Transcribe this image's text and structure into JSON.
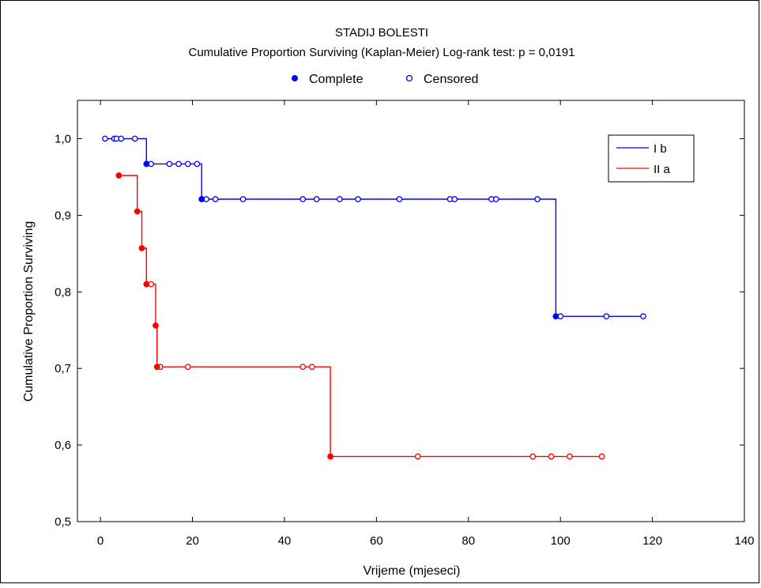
{
  "chart_data": {
    "type": "line",
    "title": "STADIJ BOLESTI",
    "subtitle": "Cumulative Proportion Surviving (Kaplan-Meier)  Log-rank test: p = 0,0191",
    "marker_legend": [
      {
        "label": "Complete",
        "filled": true
      },
      {
        "label": "Censored",
        "filled": false
      }
    ],
    "xlabel": "Vrijeme (mjeseci)",
    "ylabel": "Cumulative Proportion Surviving",
    "xlim": [
      -5,
      140
    ],
    "ylim": [
      0.5,
      1.05
    ],
    "x_ticks": [
      "0",
      "20",
      "40",
      "60",
      "80",
      "100",
      "120",
      "140"
    ],
    "x_tick_values": [
      0,
      20,
      40,
      60,
      80,
      100,
      120,
      140
    ],
    "y_ticks": [
      "0,5",
      "0,6",
      "0,7",
      "0,8",
      "0,9",
      "1,0"
    ],
    "y_tick_values": [
      0.5,
      0.6,
      0.7,
      0.8,
      0.9,
      1.0
    ],
    "grid": false,
    "legend_position": "top-right",
    "series": [
      {
        "name": "I b",
        "color": "#0000ff",
        "step": [
          [
            0.5,
            1.0
          ],
          [
            10,
            1.0
          ],
          [
            10,
            0.967
          ],
          [
            22,
            0.967
          ],
          [
            22,
            0.921
          ],
          [
            99,
            0.921
          ],
          [
            99,
            0.768
          ],
          [
            118,
            0.768
          ]
        ],
        "complete": [
          [
            10,
            0.967
          ],
          [
            22,
            0.921
          ],
          [
            99,
            0.768
          ]
        ],
        "censored": [
          [
            1,
            1.0
          ],
          [
            3,
            1.0
          ],
          [
            3.5,
            1.0
          ],
          [
            4.5,
            1.0
          ],
          [
            7.5,
            1.0
          ],
          [
            11,
            0.967
          ],
          [
            15,
            0.967
          ],
          [
            17,
            0.967
          ],
          [
            19,
            0.967
          ],
          [
            21,
            0.967
          ],
          [
            23,
            0.921
          ],
          [
            25,
            0.921
          ],
          [
            31,
            0.921
          ],
          [
            44,
            0.921
          ],
          [
            47,
            0.921
          ],
          [
            52,
            0.921
          ],
          [
            56,
            0.921
          ],
          [
            65,
            0.921
          ],
          [
            76,
            0.921
          ],
          [
            77,
            0.921
          ],
          [
            85,
            0.921
          ],
          [
            86,
            0.921
          ],
          [
            95,
            0.921
          ],
          [
            100,
            0.768
          ],
          [
            110,
            0.768
          ],
          [
            118,
            0.768
          ]
        ]
      },
      {
        "name": "II a",
        "color": "#ff0000",
        "step": [
          [
            4,
            0.952
          ],
          [
            8,
            0.952
          ],
          [
            8,
            0.905
          ],
          [
            9,
            0.905
          ],
          [
            9,
            0.857
          ],
          [
            10,
            0.857
          ],
          [
            10,
            0.81
          ],
          [
            12,
            0.81
          ],
          [
            12,
            0.756
          ],
          [
            12.3,
            0.756
          ],
          [
            12.3,
            0.702
          ],
          [
            50,
            0.702
          ],
          [
            50,
            0.585
          ],
          [
            109,
            0.585
          ]
        ],
        "complete": [
          [
            4,
            0.952
          ],
          [
            8,
            0.905
          ],
          [
            9,
            0.857
          ],
          [
            10,
            0.81
          ],
          [
            12,
            0.756
          ],
          [
            12.3,
            0.702
          ],
          [
            50,
            0.585
          ]
        ],
        "censored": [
          [
            11,
            0.81
          ],
          [
            13,
            0.702
          ],
          [
            19,
            0.702
          ],
          [
            44,
            0.702
          ],
          [
            46,
            0.702
          ],
          [
            69,
            0.585
          ],
          [
            94,
            0.585
          ],
          [
            98,
            0.585
          ],
          [
            102,
            0.585
          ],
          [
            109,
            0.585
          ]
        ]
      }
    ]
  }
}
